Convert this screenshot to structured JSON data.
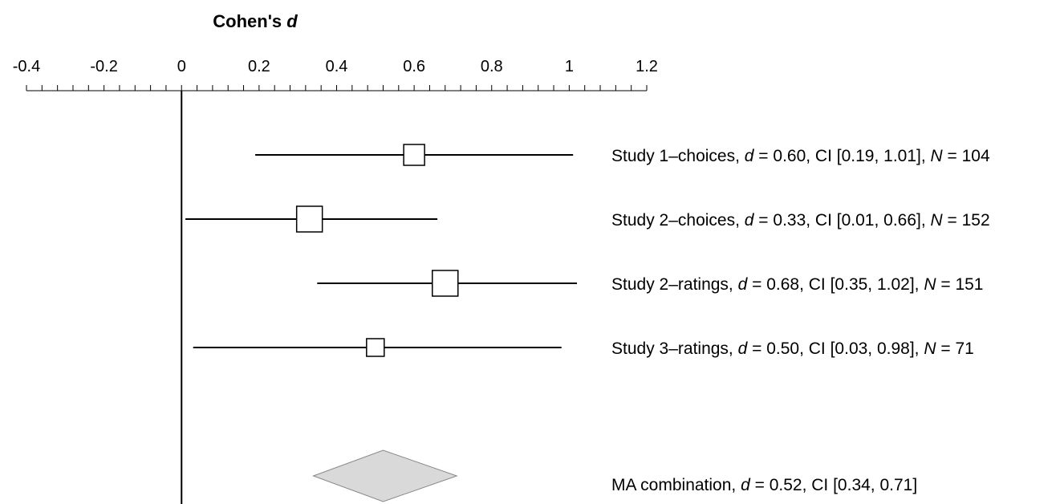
{
  "chart_data": {
    "type": "forest",
    "title": {
      "prefix": "Cohen's ",
      "italic": "d"
    },
    "xlim": [
      -0.4,
      1.2
    ],
    "major_ticks": [
      -0.4,
      -0.2,
      0,
      0.2,
      0.4,
      0.6,
      0.8,
      1,
      1.2
    ],
    "tick_labels": [
      "-0.4",
      "-0.2",
      "0",
      "0.2",
      "0.4",
      "0.6",
      "0.8",
      "1",
      "1.2"
    ],
    "minor_step": 0.04,
    "reference_line": 0,
    "studies": [
      {
        "name": "Study 1–choices",
        "d": 0.6,
        "ci": [
          0.19,
          1.01
        ],
        "n": 104,
        "label": {
          "pre": "Study 1–choices, ",
          "d_text": "d",
          "mid": " = 0.60, CI [0.19, 1.01], ",
          "n_text": "N",
          "post": " = 104"
        }
      },
      {
        "name": "Study 2–choices",
        "d": 0.33,
        "ci": [
          0.01,
          0.66
        ],
        "n": 152,
        "label": {
          "pre": "Study 2–choices, ",
          "d_text": "d",
          "mid": " = 0.33, CI [0.01, 0.66], ",
          "n_text": "N",
          "post": " = 152"
        }
      },
      {
        "name": "Study 2–ratings",
        "d": 0.68,
        "ci": [
          0.35,
          1.02
        ],
        "n": 151,
        "label": {
          "pre": "Study 2–ratings, ",
          "d_text": "d",
          "mid": " = 0.68, CI [0.35, 1.02], ",
          "n_text": "N",
          "post": " = 151"
        }
      },
      {
        "name": "Study 3–ratings",
        "d": 0.5,
        "ci": [
          0.03,
          0.98
        ],
        "n": 71,
        "label": {
          "pre": "Study 3–ratings, ",
          "d_text": "d",
          "mid": " = 0.50, CI [0.03, 0.98], ",
          "n_text": "N",
          "post": " =  71"
        }
      }
    ],
    "combined": {
      "name": "MA combination",
      "d": 0.52,
      "ci": [
        0.34,
        0.71
      ],
      "label": {
        "pre": "MA combination, ",
        "d_text": "d",
        "mid": " = 0.52, CI [0.34, 0.71]",
        "n_text": "",
        "post": ""
      }
    },
    "colors": {
      "marker_fill": "#ffffff",
      "diamond_fill": "#d9d9d9",
      "diamond_stroke": "#888888",
      "line": "#000000"
    }
  }
}
